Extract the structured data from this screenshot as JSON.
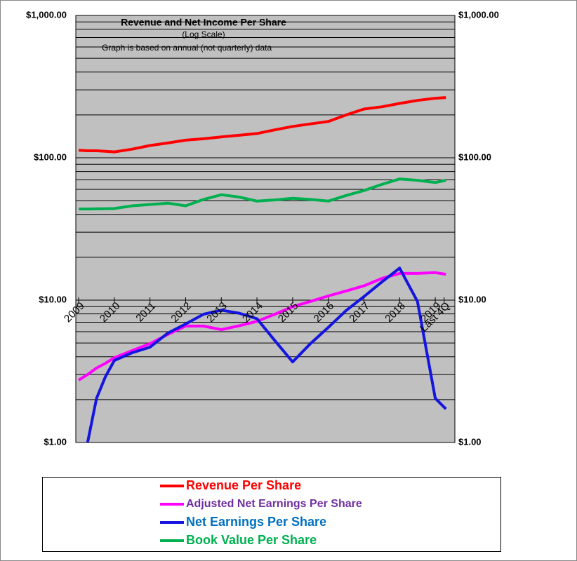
{
  "chart_data": {
    "type": "line",
    "title": "Revenue and Net Income Per Share",
    "subtitle": "(Log Scale)",
    "note": "Graph is based on annual (not quarterly) data",
    "x": [
      2009,
      2009.25,
      2009.5,
      2009.75,
      2010,
      2010.5,
      2011,
      2011.5,
      2012,
      2012.5,
      2013,
      2013.5,
      2014,
      2014.5,
      2015,
      2015.5,
      2016,
      2016.5,
      2017,
      2017.5,
      2018,
      2018.5,
      2019,
      2019.3
    ],
    "xlim": [
      2008.92,
      2019.55
    ],
    "xticks": [
      2009,
      2010,
      2011,
      2012,
      2013,
      2014,
      2015,
      2016,
      2017,
      2018,
      2019,
      {
        "value": 2019.25,
        "label": "Last 4Q"
      }
    ],
    "ylim": [
      1,
      1000
    ],
    "yticks": [
      {
        "value": 1,
        "label": "$1.00"
      },
      {
        "value": 10,
        "label": "$10.00"
      },
      {
        "value": 100,
        "label": "$100.00"
      },
      {
        "value": 1000,
        "label": "$1,000.00"
      }
    ],
    "log_scale": true,
    "grid": true,
    "legend": "bottom",
    "series": [
      {
        "name": "Revenue Per Share",
        "color": "#ff0000",
        "label_color": "#ff0000",
        "values": [
          113,
          112,
          112,
          111,
          110,
          115,
          122,
          127,
          133,
          136,
          140,
          144,
          148,
          157,
          166,
          173,
          180,
          200,
          220,
          228,
          241,
          253,
          262,
          265
        ]
      },
      {
        "name": "Adjusted Net Earnings Per Share",
        "color": "#ff00ff",
        "label_color": "#7030a0",
        "values": [
          2.74,
          3.0,
          3.33,
          3.6,
          3.94,
          4.42,
          4.95,
          5.74,
          6.57,
          6.57,
          6.2,
          6.6,
          7.1,
          7.96,
          9.0,
          9.8,
          10.7,
          11.6,
          12.6,
          14.2,
          15.4,
          15.4,
          15.6,
          15.2
        ]
      },
      {
        "name": "Net Earnings Per Share",
        "color": "#1515e0",
        "label_color": "#0070c0",
        "values": [
          null,
          1.0,
          2.04,
          2.9,
          3.77,
          4.27,
          4.67,
          5.87,
          6.8,
          7.96,
          8.5,
          8.1,
          7.4,
          5.2,
          3.68,
          4.95,
          6.43,
          8.45,
          10.6,
          13.4,
          16.8,
          9.8,
          2.04,
          1.72
        ]
      },
      {
        "name": "Book Value Per Share",
        "color": "#00b050",
        "label_color": "#00b050",
        "values": [
          43.7,
          43.7,
          43.8,
          43.9,
          44,
          46,
          47,
          48,
          46,
          51,
          55,
          53,
          49.6,
          50.6,
          52,
          51,
          49.6,
          54.3,
          58.9,
          65,
          71,
          69.5,
          67,
          69.5
        ]
      }
    ]
  }
}
